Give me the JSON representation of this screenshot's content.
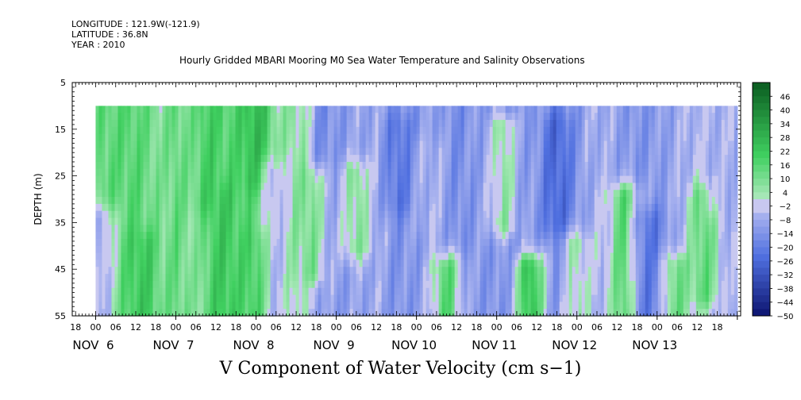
{
  "header": {
    "longitude": "LONGITUDE : 121.9W(-121.9)",
    "latitude": "LATITUDE : 36.8N",
    "year": "YEAR : 2010",
    "title": "Hourly Gridded MBARI Mooring M0 Sea Water Temperature and Salinity Observations"
  },
  "footer": {
    "variable_title": "V Component of Water Velocity (cm s−1)"
  },
  "chart_data": {
    "type": "heatmap",
    "title": "Hourly Gridded MBARI Mooring M0 Sea Water Temperature and Salinity Observations",
    "subtitle": "V Component of Water Velocity (cm s−1)",
    "ylabel": "DEPTH (m)",
    "ylim": [
      5,
      55
    ],
    "y_inverted": true,
    "y_ticks": [
      "5",
      "15",
      "25",
      "35",
      "45",
      "55"
    ],
    "xlim": [
      "2010-11-05T17:00",
      "2010-11-14T01:00"
    ],
    "x_hour_ticks": [
      "18",
      "00",
      "06",
      "12",
      "18",
      "00",
      "06",
      "12",
      "18",
      "00",
      "06",
      "12",
      "18",
      "00",
      "06",
      "12",
      "18",
      "00",
      "06",
      "12",
      "18",
      "00",
      "06",
      "12",
      "18",
      "00",
      "06",
      "12",
      "18",
      "00",
      "06",
      "12",
      "18"
    ],
    "x_day_labels": [
      {
        "text": "NOV  6",
        "date": "2010-11-06T00:00"
      },
      {
        "text": "NOV  7",
        "date": "2010-11-07T00:00"
      },
      {
        "text": "NOV  8",
        "date": "2010-11-08T00:00"
      },
      {
        "text": "NOV  9",
        "date": "2010-11-09T00:00"
      },
      {
        "text": "NOV 10",
        "date": "2010-11-10T00:00"
      },
      {
        "text": "NOV 11",
        "date": "2010-11-11T00:00"
      },
      {
        "text": "NOV 12",
        "date": "2010-11-12T00:00"
      },
      {
        "text": "NOV 13",
        "date": "2010-11-13T00:00"
      }
    ],
    "data_start": "2010-11-06T00:00",
    "data_end": "2010-11-13T23:00",
    "data_top_depth": 10,
    "data_bottom_depth": 55,
    "colorbar_labels": [
      "46",
      "40",
      "34",
      "28",
      "22",
      "16",
      "10",
      "4",
      "−2",
      "−8",
      "−14",
      "−20",
      "−26",
      "−32",
      "−38",
      "−44",
      "−50"
    ],
    "colorbar_range": [
      -50,
      52
    ],
    "colorbar_step": 3,
    "colors": {
      "positive_light": "#a8e8b8",
      "positive_mid": "#40d060",
      "positive_dark": "#0b5c20",
      "near_zero": "#c8c8f0",
      "negative_light": "#b0b8f0",
      "negative_mid": "#5070e0",
      "negative_dark": "#0c1470"
    },
    "time_profile": [
      {
        "date": "2010-11-06T00:00",
        "v": 14
      },
      {
        "date": "2010-11-06T12:00",
        "v": 16
      },
      {
        "date": "2010-11-06T20:00",
        "v": 8
      },
      {
        "date": "2010-11-07T00:00",
        "v": 14
      },
      {
        "date": "2010-11-07T06:00",
        "v": 6
      },
      {
        "date": "2010-11-07T12:00",
        "v": 14
      },
      {
        "date": "2010-11-07T18:00",
        "v": 16
      },
      {
        "date": "2010-11-08T00:00",
        "v": 16
      },
      {
        "date": "2010-11-08T06:00",
        "v": 4
      },
      {
        "date": "2010-11-08T12:00",
        "v": 6
      },
      {
        "date": "2010-11-08T18:00",
        "v": -8
      },
      {
        "date": "2010-11-09T00:00",
        "v": -12
      },
      {
        "date": "2010-11-09T06:00",
        "v": -10
      },
      {
        "date": "2010-11-09T12:00",
        "v": -8
      },
      {
        "date": "2010-11-09T18:00",
        "v": -14
      },
      {
        "date": "2010-11-10T00:00",
        "v": -12
      },
      {
        "date": "2010-11-10T06:00",
        "v": -10
      },
      {
        "date": "2010-11-10T12:00",
        "v": -16
      },
      {
        "date": "2010-11-10T18:00",
        "v": -12
      },
      {
        "date": "2010-11-11T00:00",
        "v": -14
      },
      {
        "date": "2010-11-11T06:00",
        "v": -16
      },
      {
        "date": "2010-11-11T12:00",
        "v": -10
      },
      {
        "date": "2010-11-11T18:00",
        "v": -18
      },
      {
        "date": "2010-11-12T00:00",
        "v": -12
      },
      {
        "date": "2010-11-12T06:00",
        "v": -6
      },
      {
        "date": "2010-11-12T12:00",
        "v": -10
      },
      {
        "date": "2010-11-12T18:00",
        "v": -14
      },
      {
        "date": "2010-11-13T00:00",
        "v": -12
      },
      {
        "date": "2010-11-13T06:00",
        "v": -8
      },
      {
        "date": "2010-11-13T12:00",
        "v": -4
      },
      {
        "date": "2010-11-13T23:00",
        "v": -8
      }
    ],
    "features": [
      {
        "date": "2010-11-06T02:00",
        "depth_min": 35,
        "depth_max": 55,
        "v": -6
      },
      {
        "date": "2010-11-06T14:00",
        "depth_min": 40,
        "depth_max": 55,
        "v": 22
      },
      {
        "date": "2010-11-07T10:00",
        "depth_min": 10,
        "depth_max": 30,
        "v": 20
      },
      {
        "date": "2010-11-07T14:00",
        "depth_min": 30,
        "depth_max": 55,
        "v": 22
      },
      {
        "date": "2010-11-08T00:00",
        "depth_min": 10,
        "depth_max": 25,
        "v": 26
      },
      {
        "date": "2010-11-08T02:00",
        "depth_min": 40,
        "depth_max": 55,
        "v": 24
      },
      {
        "date": "2010-11-08T06:00",
        "depth_min": 25,
        "depth_max": 55,
        "v": -4
      },
      {
        "date": "2010-11-08T16:00",
        "depth_min": 10,
        "depth_max": 45,
        "v": 10
      },
      {
        "date": "2010-11-08T20:00",
        "depth_min": 10,
        "depth_max": 20,
        "v": -16
      },
      {
        "date": "2010-11-09T06:00",
        "depth_min": 25,
        "depth_max": 40,
        "v": 8
      },
      {
        "date": "2010-11-09T19:00",
        "depth_min": 15,
        "depth_max": 30,
        "v": -22
      },
      {
        "date": "2010-11-10T04:00",
        "depth_min": 20,
        "depth_max": 35,
        "v": -6
      },
      {
        "date": "2010-11-10T09:00",
        "depth_min": 45,
        "depth_max": 55,
        "v": 16
      },
      {
        "date": "2010-11-11T02:00",
        "depth_min": 15,
        "depth_max": 35,
        "v": 6
      },
      {
        "date": "2010-11-11T10:00",
        "depth_min": 45,
        "depth_max": 55,
        "v": 24
      },
      {
        "date": "2010-11-11T18:00",
        "depth_min": 15,
        "depth_max": 35,
        "v": -26
      },
      {
        "date": "2010-11-12T00:00",
        "depth_min": 40,
        "depth_max": 55,
        "v": 4
      },
      {
        "date": "2010-11-12T14:00",
        "depth_min": 30,
        "depth_max": 55,
        "v": 16
      },
      {
        "date": "2010-11-12T22:00",
        "depth_min": 35,
        "depth_max": 55,
        "v": -22
      },
      {
        "date": "2010-11-13T06:00",
        "depth_min": 45,
        "depth_max": 55,
        "v": 12
      },
      {
        "date": "2010-11-13T14:00",
        "depth_min": 30,
        "depth_max": 50,
        "v": 14
      },
      {
        "date": "2010-11-13T20:00",
        "depth_min": 10,
        "depth_max": 30,
        "v": -6
      }
    ]
  }
}
